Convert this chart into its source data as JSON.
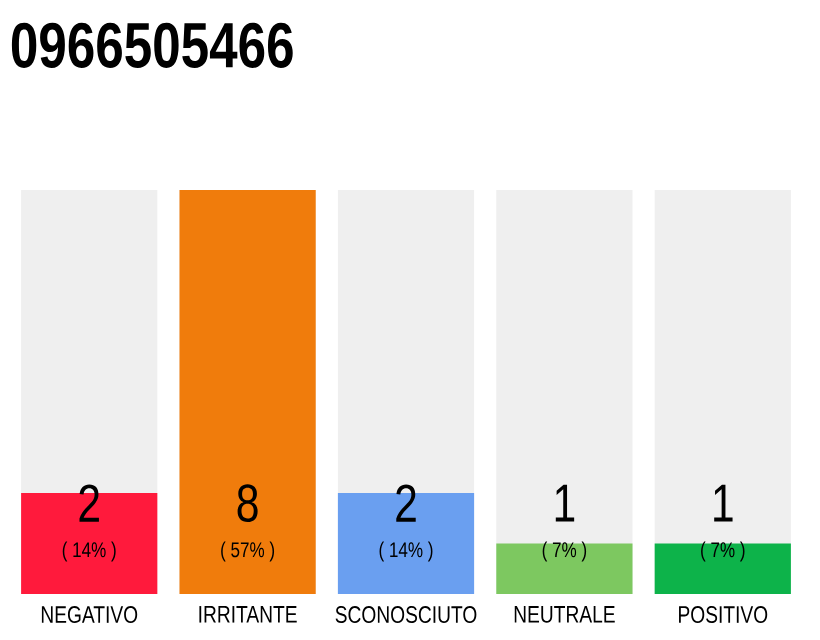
{
  "chart_data": {
    "type": "bar",
    "title": "0966505466",
    "categories": [
      "NEGATIVO",
      "IRRITANTE",
      "SCONOSCIUTO",
      "NEUTRALE",
      "POSITIVO"
    ],
    "values": [
      2,
      8,
      2,
      1,
      1
    ],
    "colors": [
      "#ff1a3c",
      "#f07c0c",
      "#6a9ff0",
      "#7dc860",
      "#0db34a"
    ],
    "value_labels": [
      "2",
      "8",
      "2",
      "1",
      "1"
    ],
    "annotations": [
      "( 14% )",
      "( 57% )",
      "( 14% )",
      "( 7% )",
      "( 7% )"
    ],
    "tick_labels": "x"
  }
}
